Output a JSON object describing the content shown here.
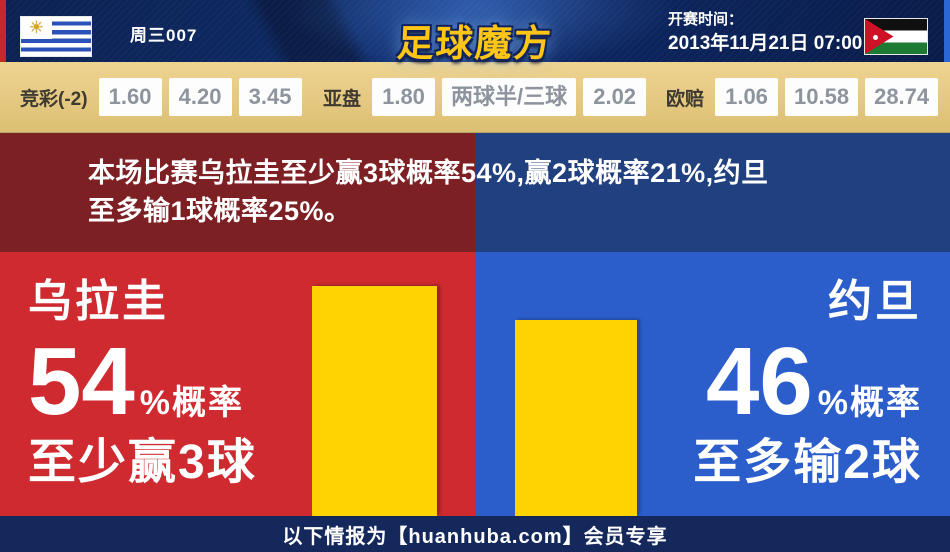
{
  "header": {
    "match_label": "周三007",
    "logo_text": "足球魔方",
    "kickoff_label": "开赛时间：",
    "kickoff_time": "2013年11月21日 07:00",
    "home_flag": "uruguay-flag",
    "away_flag": "jordan-flag"
  },
  "icons": {
    "sun_of_may": "☀"
  },
  "odds": {
    "jingcai": {
      "label": "竞彩(-2)",
      "values": [
        "1.60",
        "4.20",
        "3.45"
      ]
    },
    "yapan": {
      "label": "亚盘",
      "values": [
        "1.80",
        "两球半/三球",
        "2.02"
      ]
    },
    "oupei": {
      "label": "欧赔",
      "values": [
        "1.06",
        "10.58",
        "28.74"
      ]
    }
  },
  "summary": {
    "lines": [
      "本场比赛乌拉圭至少赢3球概率54%,赢2球概率21%,约旦",
      "至多输1球概率25%。"
    ]
  },
  "panels": {
    "home": {
      "team": "乌拉圭",
      "probability": "54",
      "probability_suffix": "%概率",
      "outcome": "至少赢3球",
      "bar_percent": 54
    },
    "away": {
      "team": "约旦",
      "probability": "46",
      "probability_suffix": "%概率",
      "outcome": "至多输2球",
      "bar_percent": 46
    }
  },
  "footer": {
    "text": "以下情报为【huanhuba.com】会员专享"
  },
  "colors": {
    "home_red": "#cf2a2f",
    "away_blue": "#2b5ecb",
    "dark_red": "#7d2024",
    "dark_blue": "#20407f",
    "bar_yellow": "#ffd301",
    "odds_band_tan": "#e5c982",
    "footer_navy": "#15285c",
    "logo_gold": "#ffc615"
  }
}
